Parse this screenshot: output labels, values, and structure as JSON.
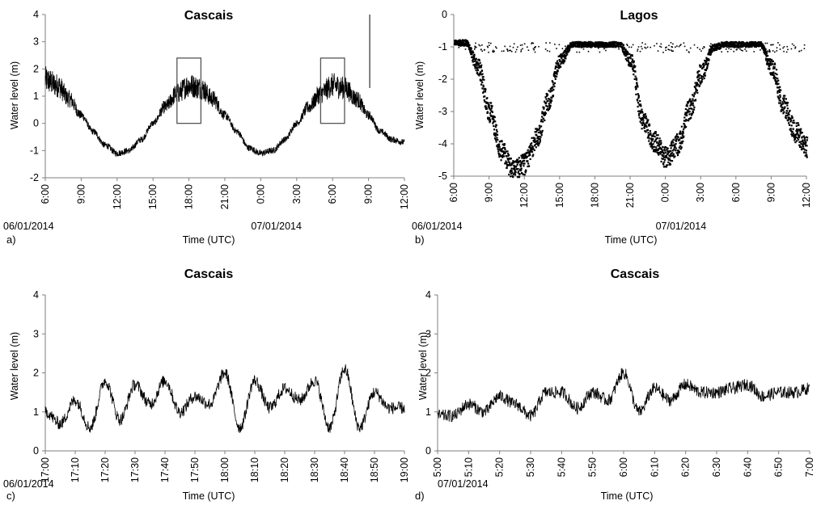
{
  "chart_data": [
    {
      "id": "a",
      "type": "line",
      "panel_label": "a)",
      "title": "Cascais",
      "xlabel": "Time (UTC)",
      "ylabel": "Water level (m)",
      "ylim": [
        -2,
        4
      ],
      "yticks": [
        "-2",
        "-1",
        "0",
        "1",
        "2",
        "3",
        "4"
      ],
      "xlim": [
        0,
        30
      ],
      "xtick_labels": [
        "6:00",
        "9:00",
        "12:00",
        "15:00",
        "18:00",
        "21:00",
        "0:00",
        "3:00",
        "6:00",
        "9:00",
        "12:00"
      ],
      "date_labels": [
        {
          "text": "06/01/2014",
          "hours_since_start": 0
        },
        {
          "text": "07/01/2014",
          "hours_since_start": 18
        }
      ],
      "tidal": {
        "mean": 0.3,
        "amplitude": 1.15,
        "period_hours": 12.4,
        "peak_hours": 12.4,
        "noise": 0.45
      },
      "spike": {
        "x": 27.1,
        "y": 4.0
      },
      "boxes": [
        {
          "x0": 11,
          "x1": 13,
          "y0": 0.0,
          "y1": 2.4
        },
        {
          "x0": 23,
          "x1": 25,
          "y0": 0.0,
          "y1": 2.4
        }
      ],
      "series": [
        {
          "x": [
            0,
            1,
            2,
            3,
            4,
            5,
            6,
            7,
            8,
            9,
            10,
            11,
            12,
            13,
            14,
            15,
            16,
            17,
            18,
            19,
            20,
            21,
            22,
            23,
            24,
            25,
            26,
            27,
            28,
            29,
            30
          ],
          "values": [
            1.6,
            1.4,
            0.9,
            0.3,
            -0.3,
            -0.8,
            -1.1,
            -1.0,
            -0.6,
            0.0,
            0.6,
            1.1,
            1.4,
            1.3,
            0.9,
            0.3,
            -0.3,
            -0.9,
            -1.1,
            -1.0,
            -0.6,
            0.0,
            0.6,
            1.1,
            1.4,
            1.3,
            0.9,
            0.3,
            -0.3,
            -0.6,
            -0.7
          ]
        }
      ]
    },
    {
      "id": "b",
      "type": "scatter",
      "panel_label": "b)",
      "title": "Lagos",
      "xlabel": "Time (UTC)",
      "ylabel": "Water level (m)",
      "ylim": [
        -5,
        0
      ],
      "yticks": [
        "-5",
        "-4",
        "-3",
        "-2",
        "-1",
        "0"
      ],
      "xlim": [
        0,
        30
      ],
      "xtick_labels": [
        "6:00",
        "9:00",
        "12:00",
        "15:00",
        "18:00",
        "21:00",
        "0:00",
        "3:00",
        "6:00",
        "9:00",
        "12:00"
      ],
      "date_labels": [
        {
          "text": "06/01/2014",
          "hours_since_start": 0
        },
        {
          "text": "07/01/2014",
          "hours_since_start": 18
        }
      ],
      "series": [
        {
          "x": [
            0,
            1,
            2,
            3,
            4,
            5,
            6,
            7,
            8,
            9,
            10,
            11,
            12,
            13,
            14,
            15,
            16,
            17,
            18,
            19,
            20,
            21,
            22,
            23,
            24,
            25,
            26,
            27,
            28,
            29,
            30
          ],
          "values": [
            -0.85,
            -0.85,
            -1.6,
            -3.0,
            -4.2,
            -4.8,
            -4.6,
            -3.8,
            -2.6,
            -1.4,
            -0.9,
            -0.9,
            -0.9,
            -0.9,
            -0.9,
            -1.4,
            -3.2,
            -3.9,
            -4.4,
            -4.0,
            -2.9,
            -1.8,
            -1.0,
            -0.9,
            -0.9,
            -0.9,
            -0.9,
            -1.6,
            -2.8,
            -3.6,
            -4.1
          ]
        }
      ]
    },
    {
      "id": "c",
      "type": "line",
      "panel_label": "c)",
      "title": "Cascais",
      "xlabel": "Time (UTC)",
      "ylabel": "Water level (m)",
      "ylim": [
        0,
        4
      ],
      "yticks": [
        "0",
        "1",
        "2",
        "3",
        "4"
      ],
      "xlim": [
        0,
        120
      ],
      "xtick_labels": [
        "17:00",
        "17:10",
        "17:20",
        "17:30",
        "17:40",
        "17:50",
        "18:00",
        "18:10",
        "18:20",
        "18:30",
        "18:40",
        "18:50",
        "19:00"
      ],
      "date_labels": [
        {
          "text": "06/01/2014",
          "hours_since_start": 0
        }
      ],
      "series": [
        {
          "x": [
            0,
            5,
            10,
            15,
            20,
            25,
            30,
            35,
            40,
            45,
            50,
            55,
            60,
            65,
            70,
            75,
            80,
            85,
            90,
            95,
            100,
            105,
            110,
            115,
            120
          ],
          "values": [
            1.0,
            0.7,
            1.3,
            0.6,
            1.8,
            0.8,
            1.7,
            1.2,
            1.8,
            1.0,
            1.4,
            1.2,
            2.0,
            0.6,
            1.8,
            1.1,
            1.6,
            1.3,
            1.8,
            0.6,
            2.1,
            0.6,
            1.5,
            1.1,
            1.1
          ]
        }
      ]
    },
    {
      "id": "d",
      "type": "line",
      "panel_label": "d)",
      "title": "Cascais",
      "xlabel": "Time (UTC)",
      "ylabel": "Water level (m)",
      "ylim": [
        0,
        4
      ],
      "yticks": [
        "0",
        "1",
        "2",
        "3",
        "4"
      ],
      "xlim": [
        0,
        120
      ],
      "xtick_labels": [
        "5:00",
        "5:10",
        "5:20",
        "5:30",
        "5:40",
        "5:50",
        "6:00",
        "6:10",
        "6:20",
        "6:30",
        "6:40",
        "6:50",
        "7:00"
      ],
      "date_labels": [
        {
          "text": "07/01/2014",
          "hours_since_start": 0
        }
      ],
      "series": [
        {
          "x": [
            0,
            5,
            10,
            15,
            20,
            25,
            30,
            35,
            40,
            45,
            50,
            55,
            60,
            65,
            70,
            75,
            80,
            85,
            90,
            95,
            100,
            105,
            110,
            115,
            120
          ],
          "values": [
            0.9,
            0.9,
            1.2,
            1.0,
            1.4,
            1.2,
            0.9,
            1.5,
            1.5,
            1.1,
            1.5,
            1.3,
            2.0,
            1.0,
            1.6,
            1.3,
            1.7,
            1.5,
            1.5,
            1.6,
            1.7,
            1.4,
            1.5,
            1.5,
            1.6
          ]
        }
      ]
    }
  ]
}
